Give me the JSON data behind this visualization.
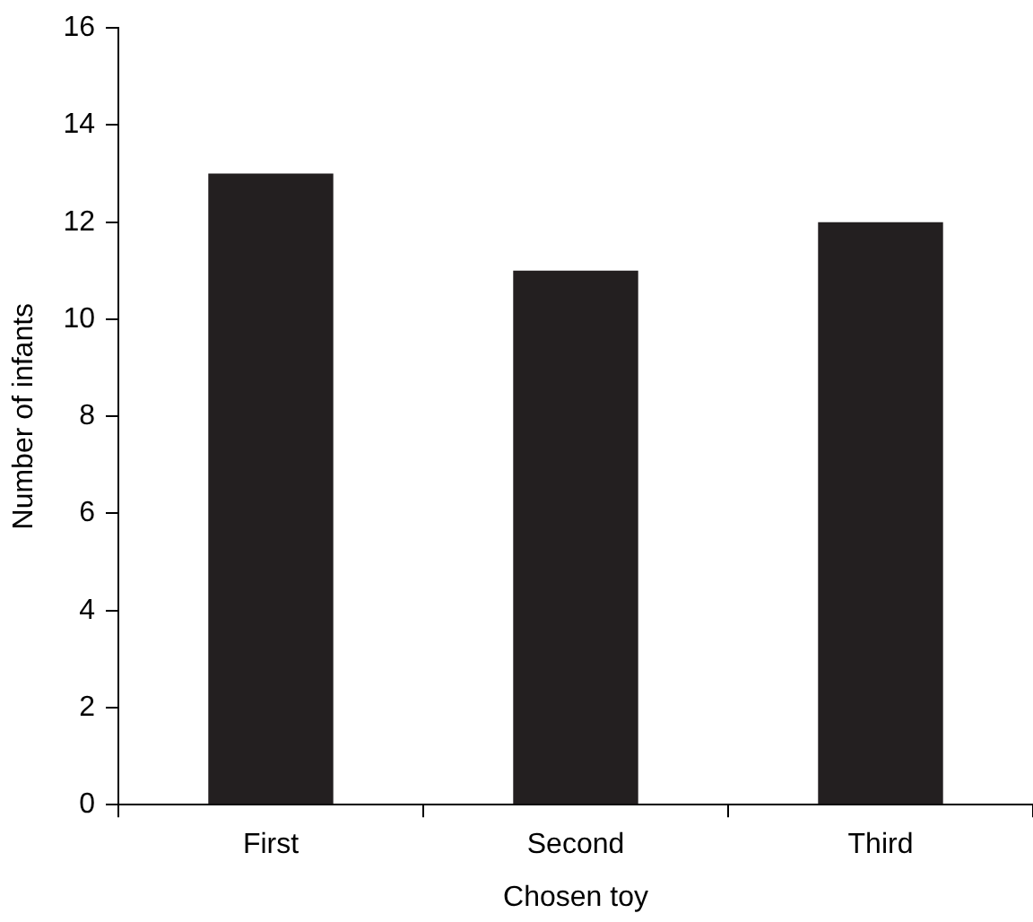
{
  "chart_data": {
    "type": "bar",
    "xlabel": "Chosen toy",
    "ylabel": "Number of infants",
    "categories": [
      "First",
      "Second",
      "Third"
    ],
    "values": [
      13,
      11,
      12
    ],
    "color": "#231f20",
    "ylim": [
      0,
      16
    ],
    "yticks": [
      0,
      2,
      4,
      6,
      8,
      10,
      12,
      14,
      16
    ],
    "grid": false,
    "legend": false
  }
}
